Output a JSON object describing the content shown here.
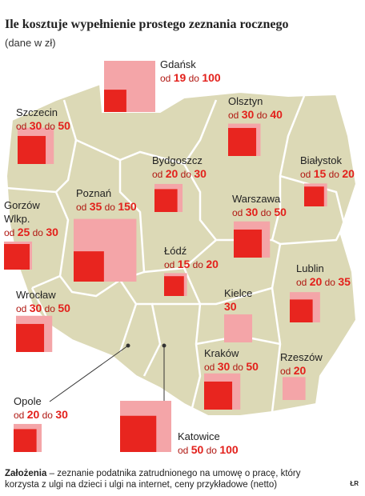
{
  "title": "Ile kosztuje wypełnienie prostego zeznania rocznego",
  "subtitle": "(dane w zł)",
  "from_word": "od",
  "to_word": "do",
  "cities": [
    {
      "name": "Gdańsk",
      "from": 19,
      "to": 100
    },
    {
      "name": "Szczecin",
      "from": 30,
      "to": 50
    },
    {
      "name": "Olsztyn",
      "from": 30,
      "to": 40
    },
    {
      "name": "Białystok",
      "from": 15,
      "to": 20
    },
    {
      "name": "Bydgoszcz",
      "from": 20,
      "to": 30
    },
    {
      "name": "Poznań",
      "from": 35,
      "to": 150
    },
    {
      "name": "Gorzów Wlkp.",
      "from": 25,
      "to": 30
    },
    {
      "name": "Warszawa",
      "from": 30,
      "to": 50
    },
    {
      "name": "Łódź",
      "from": 15,
      "to": 20
    },
    {
      "name": "Lublin",
      "from": 20,
      "to": 35
    },
    {
      "name": "Wrocław",
      "from": 30,
      "to": 50
    },
    {
      "name": "Kielce",
      "value": 30
    },
    {
      "name": "Kraków",
      "from": 30,
      "to": 50
    },
    {
      "name": "Rzeszów",
      "from": 20
    },
    {
      "name": "Opole",
      "from": 20,
      "to": 30
    },
    {
      "name": "Katowice",
      "from": 50,
      "to": 100
    }
  ],
  "footer": {
    "label": "Założenia",
    "note": "– zeznanie podatnika zatrudnionego na umowę o pracę, który korzysta z ulgi na dzieci i ulgi na internet, ceny przykładowe (netto)",
    "credit": "ŁR"
  }
}
